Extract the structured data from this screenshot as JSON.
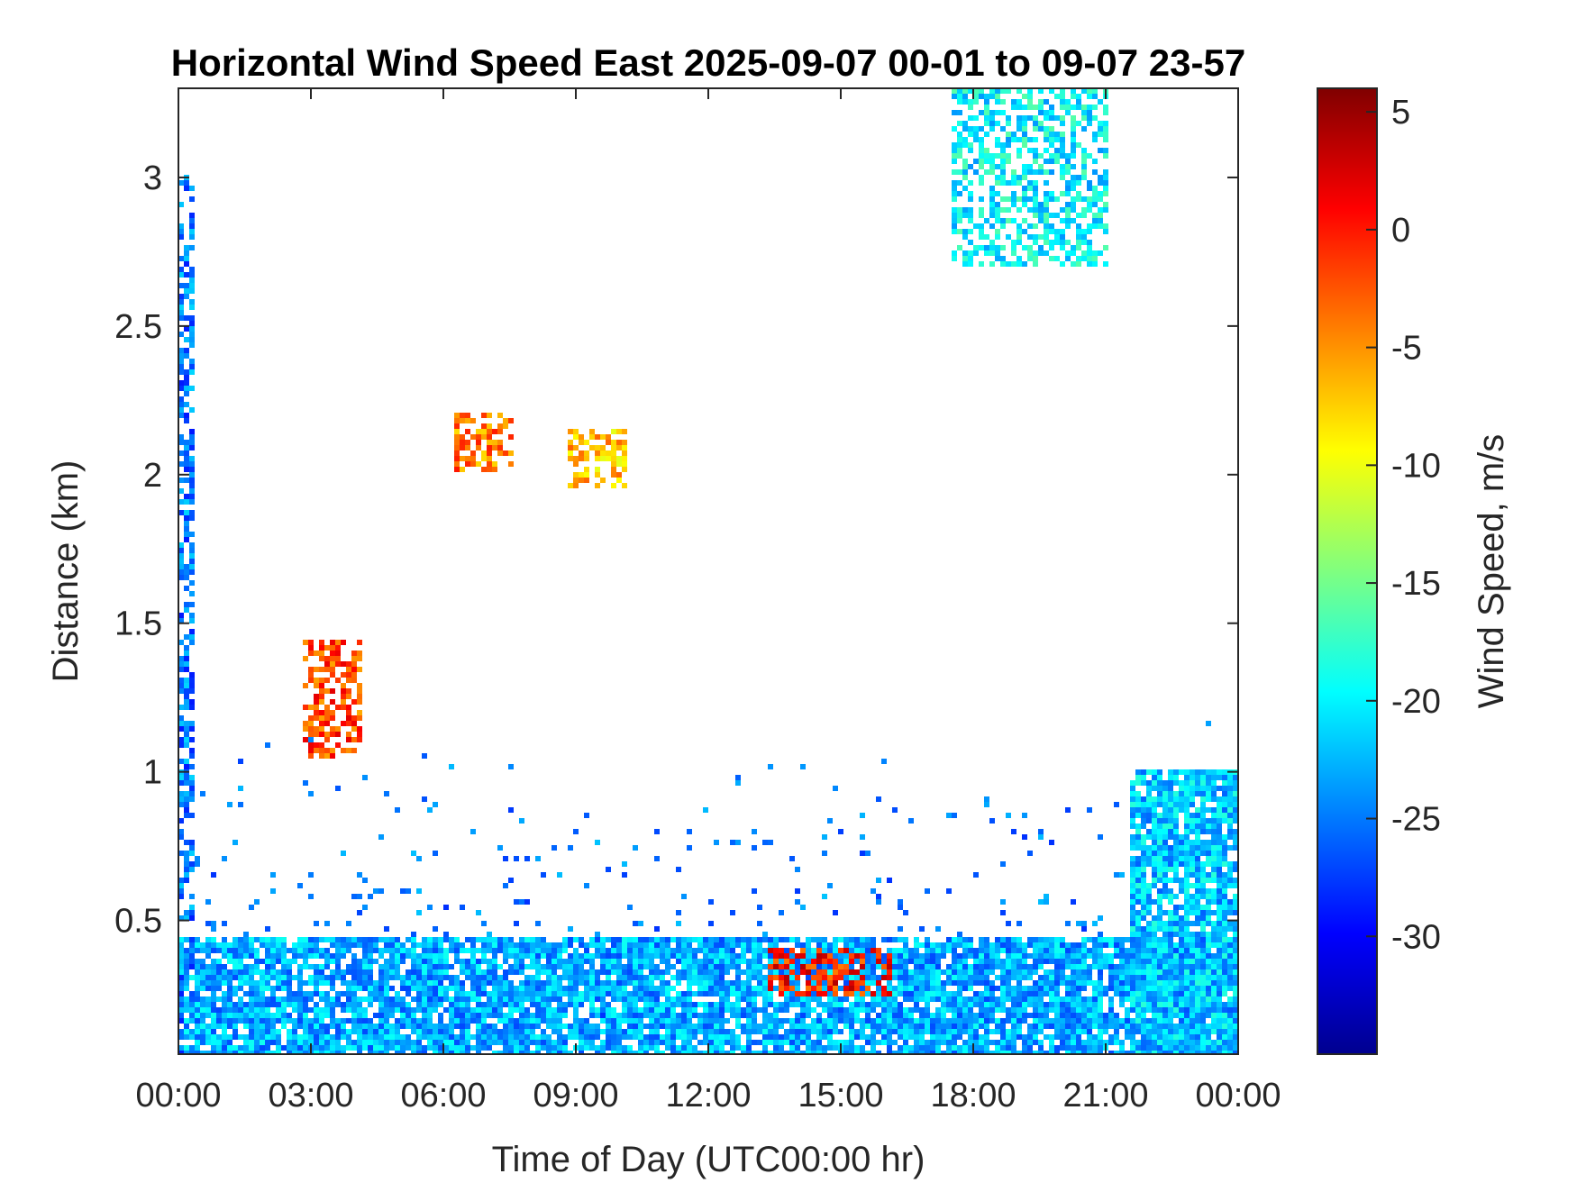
{
  "chart_data": {
    "type": "heatmap",
    "title": "Horizontal Wind Speed East 2025-09-07 00-01 to 09-07 23-57",
    "xlabel": "Time of Day (UTC00:00 hr)",
    "ylabel": "Distance (km)",
    "x_ticks": [
      "00:00",
      "03:00",
      "06:00",
      "09:00",
      "12:00",
      "15:00",
      "18:00",
      "21:00",
      "00:00"
    ],
    "y_ticks": [
      "0.5",
      "1",
      "1.5",
      "2",
      "2.5",
      "3"
    ],
    "xlim_hours": [
      0,
      24
    ],
    "ylim_km": [
      0.05,
      3.3
    ],
    "grid": false,
    "colorbar": {
      "label": "Wind Speed, m/s",
      "range": [
        -35,
        6
      ],
      "ticks": [
        "5",
        "0",
        "-5",
        "-10",
        "-15",
        "-20",
        "-25",
        "-30"
      ],
      "colormap": "jet"
    },
    "data_regions": [
      {
        "desc": "dense near-surface layer",
        "x_hours": [
          0,
          24
        ],
        "y_km": [
          0.05,
          0.45
        ],
        "value_ms": -23
      },
      {
        "desc": "early morning column",
        "x_hours": [
          0,
          0.4
        ],
        "y_km": [
          0.05,
          3.0
        ],
        "value_ms": -25
      },
      {
        "desc": "rising layer 03-04",
        "x_hours": [
          2.8,
          4.2
        ],
        "y_km": [
          1.05,
          1.45
        ],
        "value_ms": -2
      },
      {
        "desc": "elevated layer 06-08",
        "x_hours": [
          6.3,
          7.6
        ],
        "y_km": [
          2.0,
          2.2
        ],
        "value_ms": -4
      },
      {
        "desc": "elevated layer 09-10",
        "x_hours": [
          8.8,
          10.2
        ],
        "y_km": [
          1.95,
          2.15
        ],
        "value_ms": -7
      },
      {
        "desc": "late evening deep layer",
        "x_hours": [
          21.5,
          24
        ],
        "y_km": [
          0.05,
          1.0
        ],
        "value_ms": -22
      },
      {
        "desc": "upper patches 18-21",
        "x_hours": [
          17.5,
          21
        ],
        "y_km": [
          2.7,
          3.3
        ],
        "value_ms": -20
      },
      {
        "desc": "low red band 13-16",
        "x_hours": [
          13.3,
          16.2
        ],
        "y_km": [
          0.25,
          0.4
        ],
        "value_ms": 0
      }
    ]
  }
}
